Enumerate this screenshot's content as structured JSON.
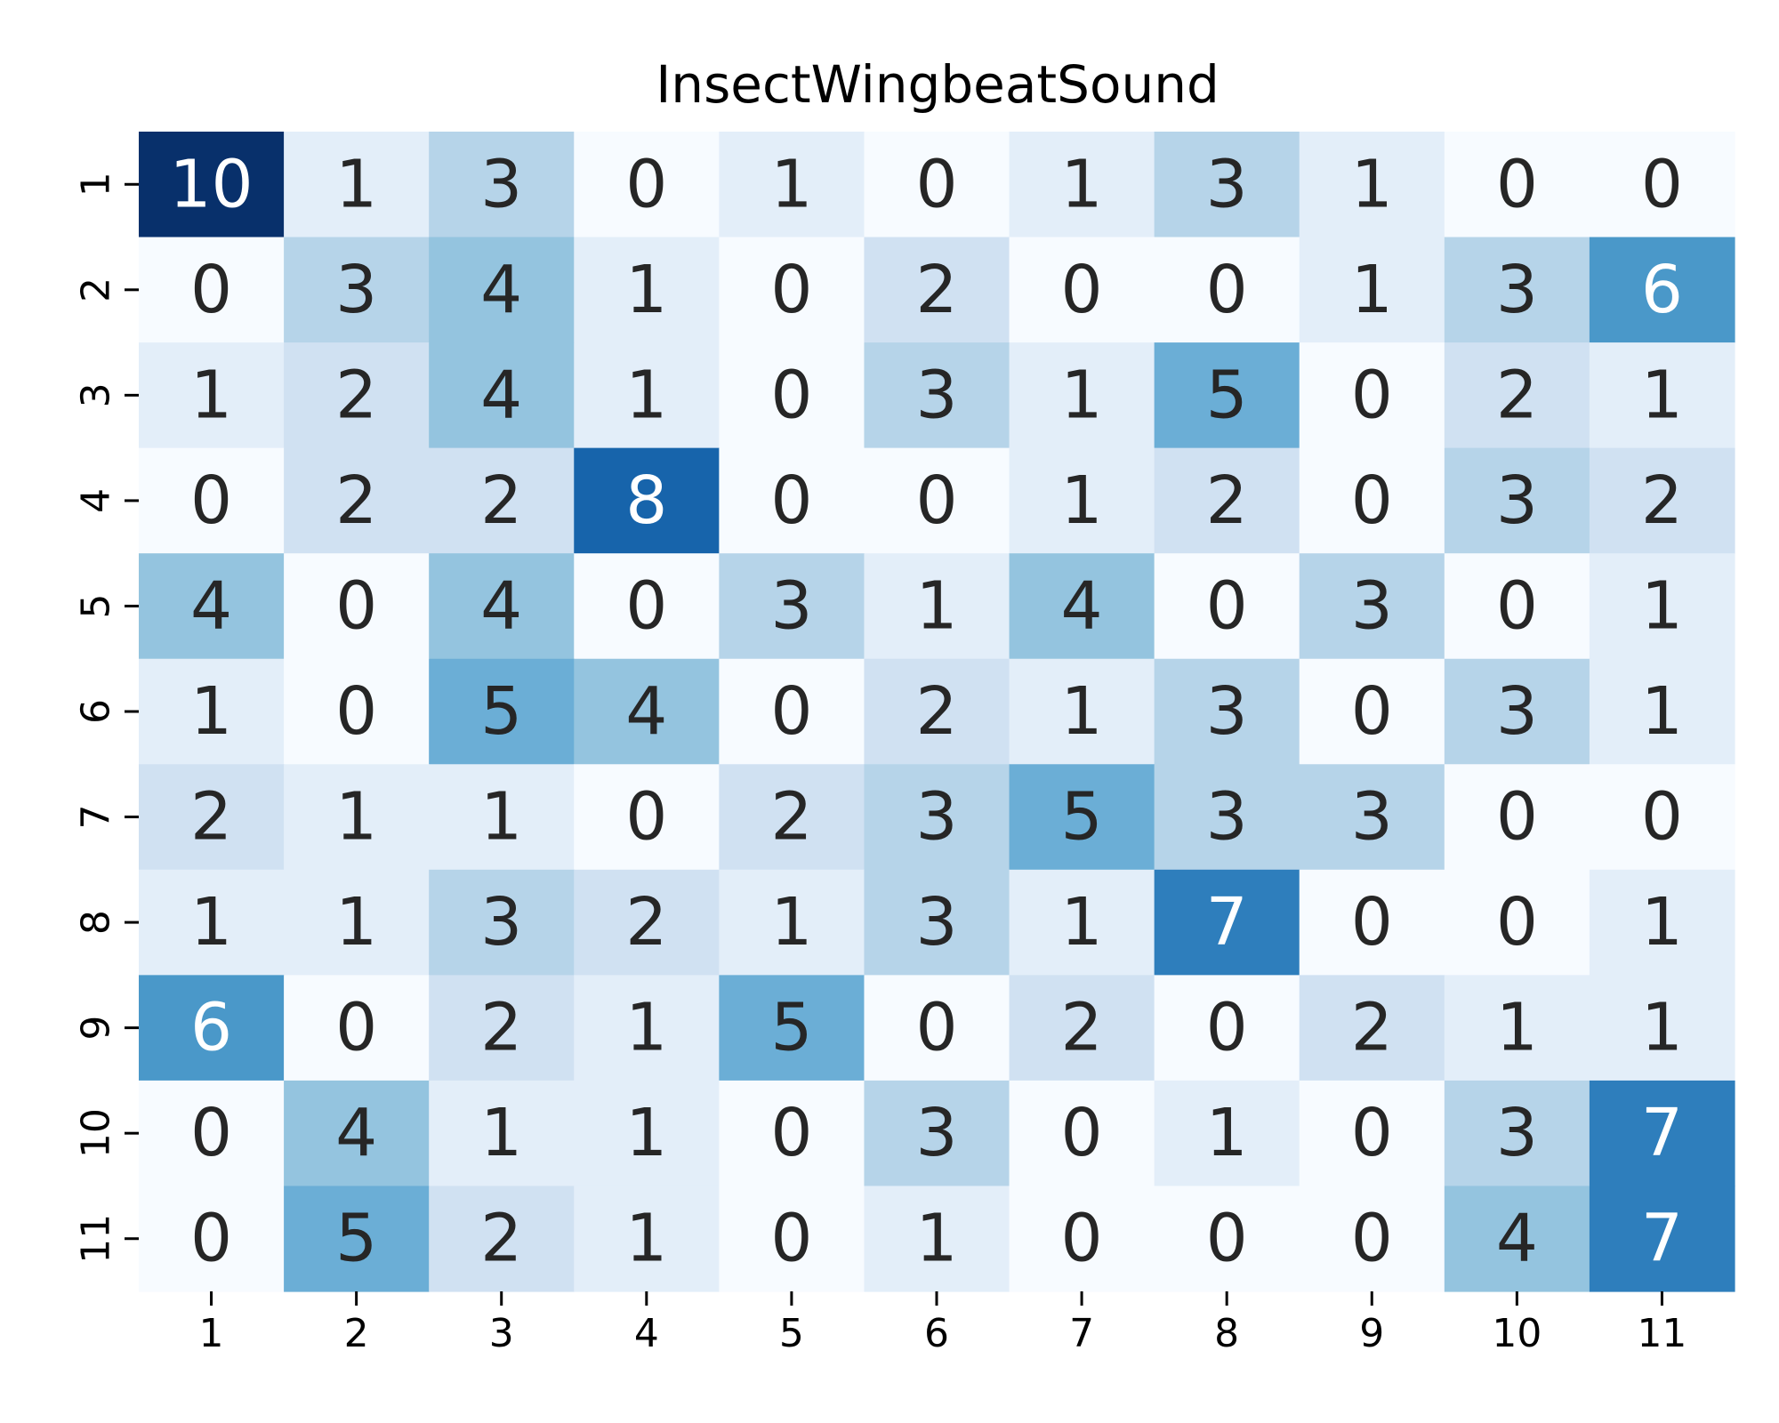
{
  "chart_data": {
    "type": "heatmap",
    "title": "InsectWingbeatSound",
    "xlabel": "",
    "ylabel": "",
    "x_categories": [
      "1",
      "2",
      "3",
      "4",
      "5",
      "6",
      "7",
      "8",
      "9",
      "10",
      "11"
    ],
    "y_categories": [
      "1",
      "2",
      "3",
      "4",
      "5",
      "6",
      "7",
      "8",
      "9",
      "10",
      "11"
    ],
    "values": [
      [
        10,
        1,
        3,
        0,
        1,
        0,
        1,
        3,
        1,
        0,
        0
      ],
      [
        0,
        3,
        4,
        1,
        0,
        2,
        0,
        0,
        1,
        3,
        6
      ],
      [
        1,
        2,
        4,
        1,
        0,
        3,
        1,
        5,
        0,
        2,
        1
      ],
      [
        0,
        2,
        2,
        8,
        0,
        0,
        1,
        2,
        0,
        3,
        2
      ],
      [
        4,
        0,
        4,
        0,
        3,
        1,
        4,
        0,
        3,
        0,
        1
      ],
      [
        1,
        0,
        5,
        4,
        0,
        2,
        1,
        3,
        0,
        3,
        1
      ],
      [
        2,
        1,
        1,
        0,
        2,
        3,
        5,
        3,
        3,
        0,
        0
      ],
      [
        1,
        1,
        3,
        2,
        1,
        3,
        1,
        7,
        0,
        0,
        1
      ],
      [
        6,
        0,
        2,
        1,
        5,
        0,
        2,
        0,
        2,
        1,
        1
      ],
      [
        0,
        4,
        1,
        1,
        0,
        3,
        0,
        1,
        0,
        3,
        7
      ],
      [
        0,
        5,
        2,
        1,
        0,
        1,
        0,
        0,
        0,
        4,
        7
      ]
    ],
    "colormap": "Blues",
    "vmin": 0,
    "vmax": 10,
    "colorbar": false,
    "grid": false,
    "annotated": true
  }
}
